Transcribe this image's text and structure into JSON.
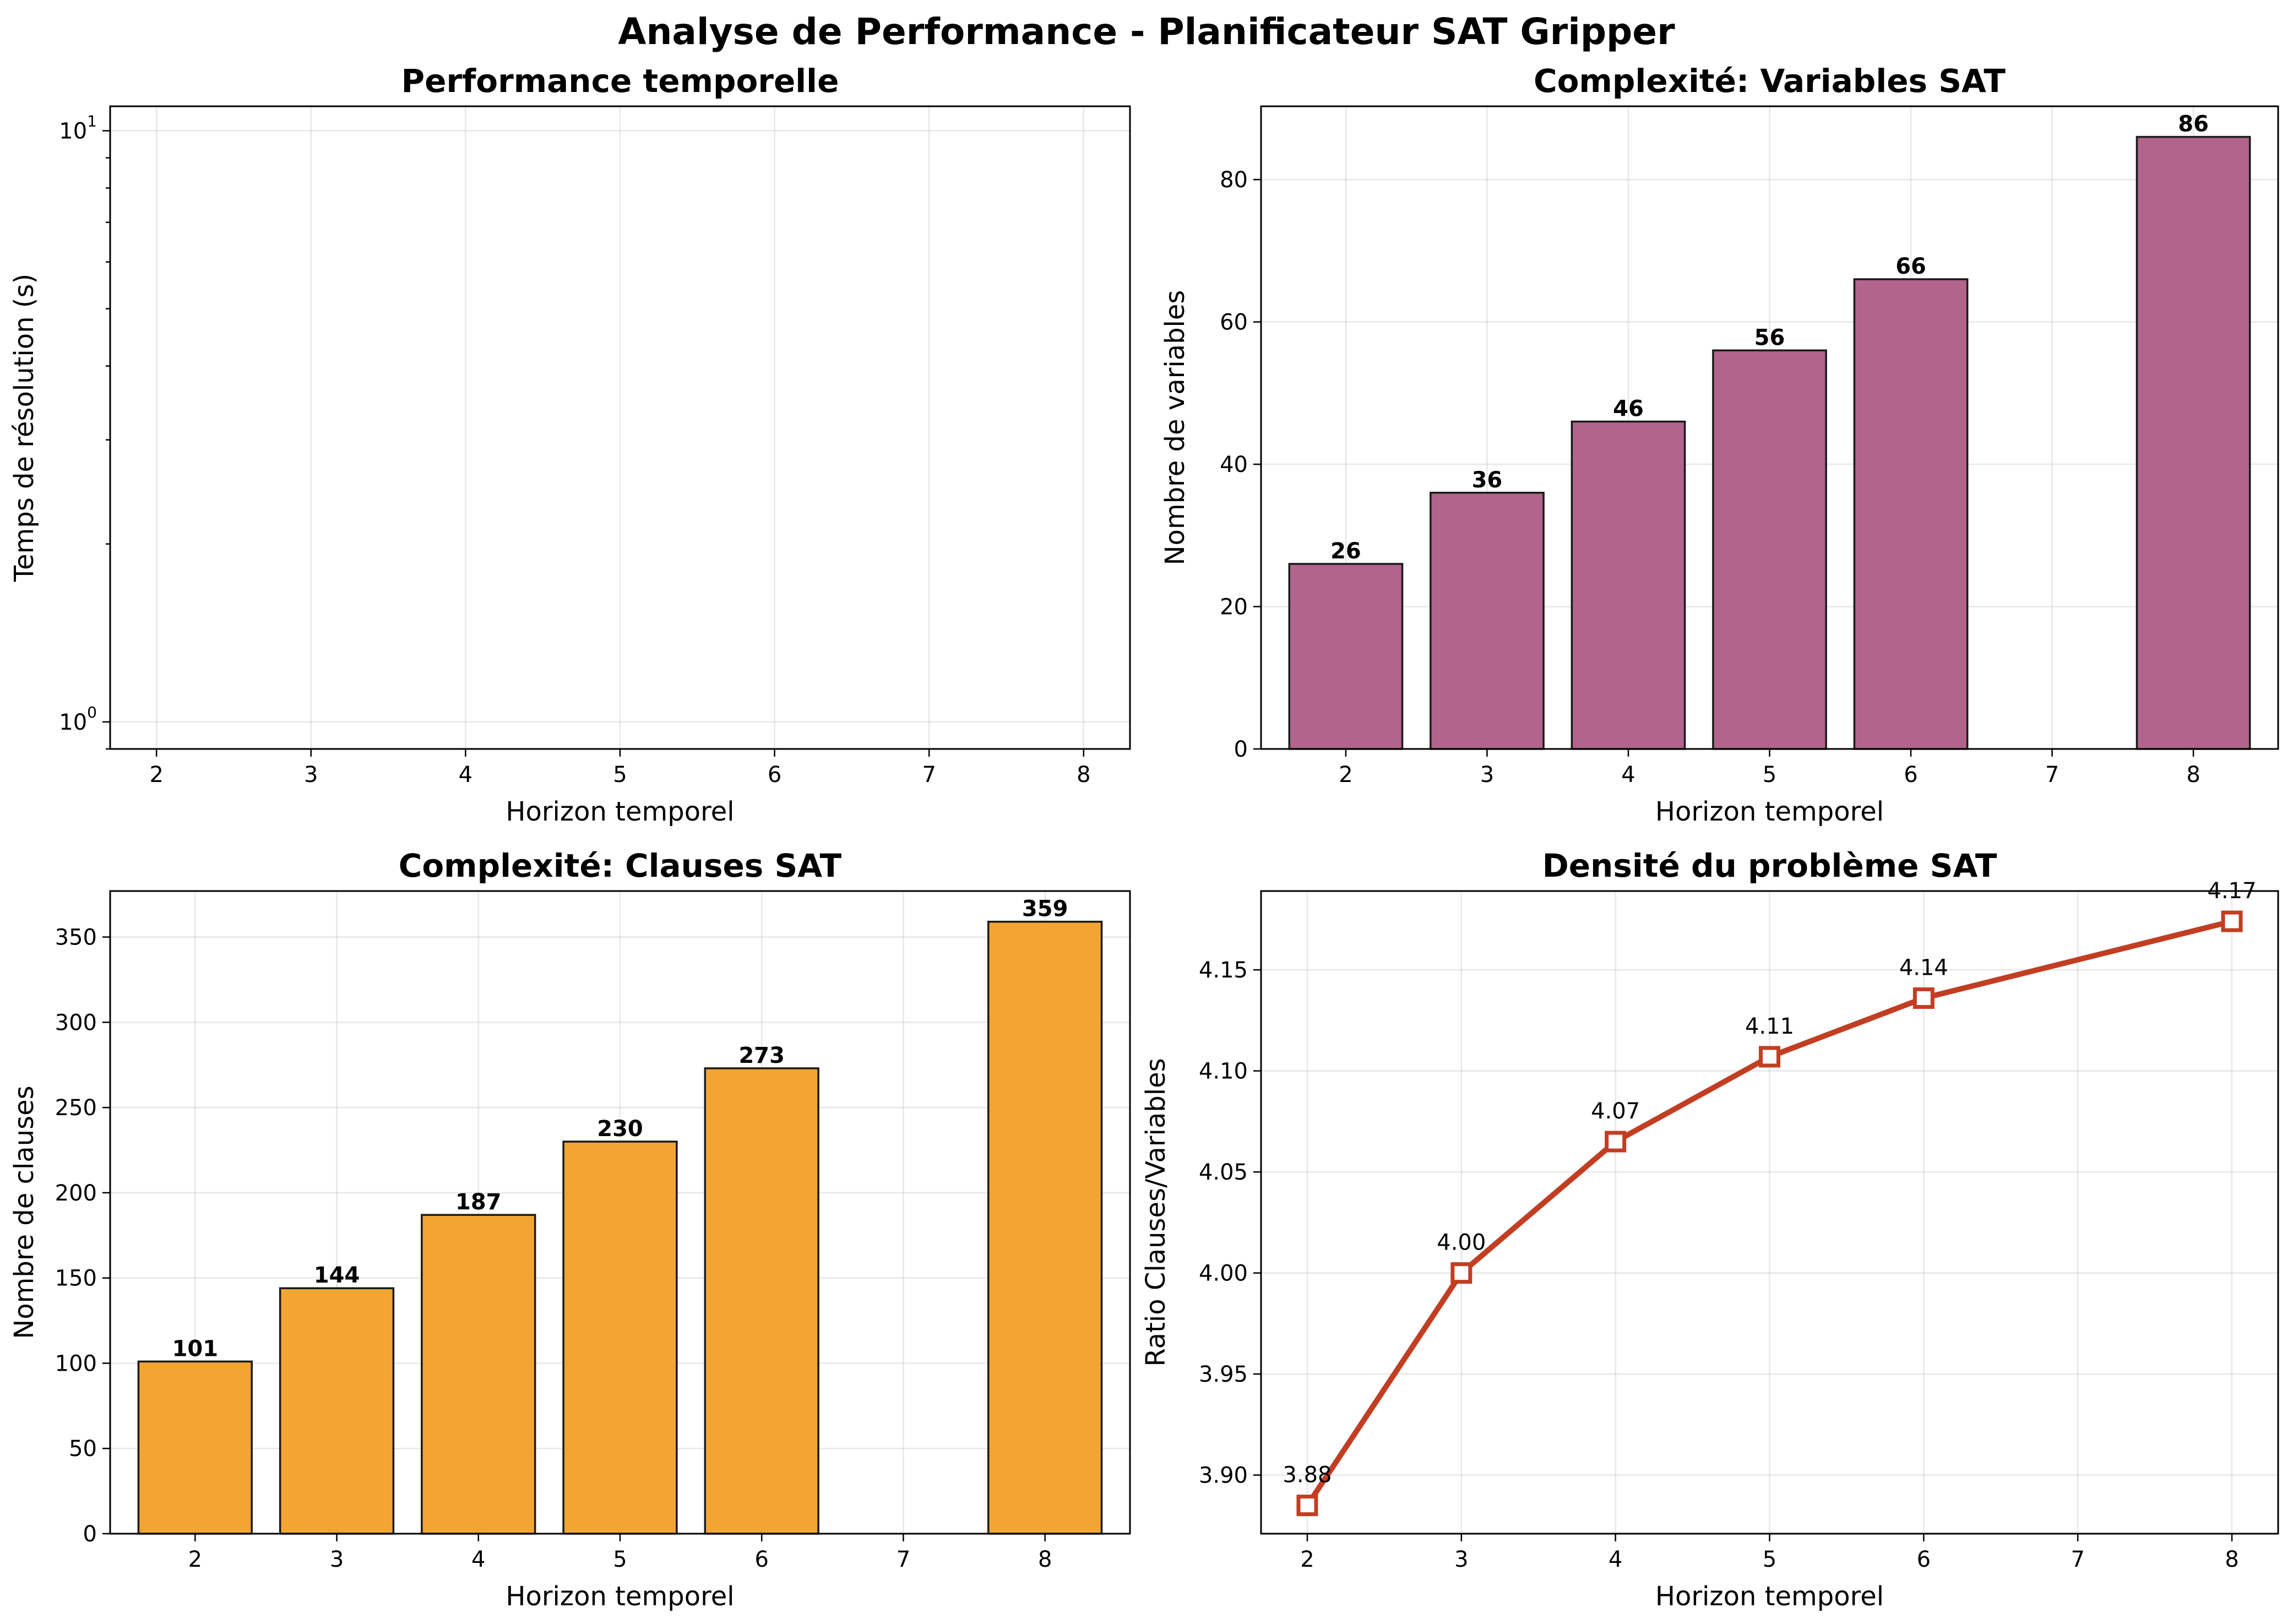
{
  "figure": {
    "suptitle": "Analyse de Performance - Planificateur SAT Gripper"
  },
  "chart_data": [
    {
      "id": "time",
      "type": "line",
      "title": "Performance temporelle",
      "xlabel": "Horizon temporel",
      "ylabel": "Temps de résolution (s)",
      "yscale": "log",
      "x": [],
      "values": [],
      "xticks": [
        2,
        3,
        4,
        5,
        6,
        7,
        8
      ],
      "xlim": [
        1.7,
        8.3
      ],
      "ylim": [
        0.9,
        11
      ],
      "yticks": [
        {
          "value": 1,
          "base": "10",
          "exp": "0"
        },
        {
          "value": 10,
          "base": "10",
          "exp": "1"
        }
      ],
      "grid": true
    },
    {
      "id": "variables",
      "type": "bar",
      "title": "Complexité: Variables SAT",
      "xlabel": "Horizon temporel",
      "ylabel": "Nombre de variables",
      "x": [
        2,
        3,
        4,
        5,
        6,
        8
      ],
      "values": [
        26,
        36,
        46,
        56,
        66,
        86
      ],
      "xticks": [
        2,
        3,
        4,
        5,
        6,
        7,
        8
      ],
      "xlim": [
        1.4,
        8.6
      ],
      "ylim": [
        0,
        90.3
      ],
      "yticks": [
        0,
        20,
        40,
        60,
        80
      ],
      "color": "#b3648c",
      "grid": true
    },
    {
      "id": "clauses",
      "type": "bar",
      "title": "Complexité: Clauses SAT",
      "xlabel": "Horizon temporel",
      "ylabel": "Nombre de clauses",
      "x": [
        2,
        3,
        4,
        5,
        6,
        8
      ],
      "values": [
        101,
        144,
        187,
        230,
        273,
        359
      ],
      "xticks": [
        2,
        3,
        4,
        5,
        6,
        7,
        8
      ],
      "xlim": [
        1.4,
        8.6
      ],
      "ylim": [
        0,
        377
      ],
      "yticks": [
        0,
        50,
        100,
        150,
        200,
        250,
        300,
        350
      ],
      "color": "#f2a533",
      "grid": true
    },
    {
      "id": "density",
      "type": "line",
      "title": "Densité du problème SAT",
      "xlabel": "Horizon temporel",
      "ylabel": "Ratio Clauses/Variables",
      "x": [
        2,
        3,
        4,
        5,
        6,
        8
      ],
      "values": [
        3.885,
        4.0,
        4.065,
        4.107,
        4.136,
        4.174
      ],
      "point_labels": [
        "3.88",
        "4.00",
        "4.07",
        "4.11",
        "4.14",
        "4.17"
      ],
      "xticks": [
        2,
        3,
        4,
        5,
        6,
        7,
        8
      ],
      "xlim": [
        1.7,
        8.3
      ],
      "ylim": [
        3.871,
        4.189
      ],
      "yticks": [
        3.9,
        3.95,
        4.0,
        4.05,
        4.1,
        4.15
      ],
      "ytick_labels": [
        "3.90",
        "3.95",
        "4.00",
        "4.05",
        "4.10",
        "4.15"
      ],
      "color": "#c23e22",
      "marker": "square-open",
      "grid": true
    }
  ]
}
